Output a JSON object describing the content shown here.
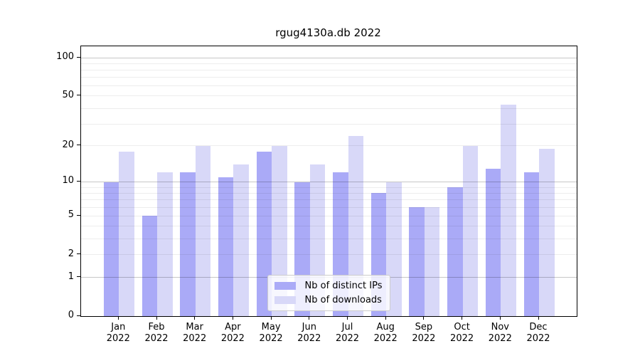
{
  "chart_data": {
    "type": "bar",
    "title": "rgug4130a.db 2022",
    "x": {
      "categories": [
        "Jan",
        "Feb",
        "Mar",
        "Apr",
        "May",
        "Jun",
        "Jul",
        "Aug",
        "Sep",
        "Oct",
        "Nov",
        "Dec"
      ],
      "year_label": "2022"
    },
    "y": {
      "scale": "log1p",
      "axis_max": 123,
      "tick_values": [
        100,
        50,
        20,
        10,
        5,
        2,
        1,
        0
      ],
      "major_grid_values": [
        1,
        10,
        100
      ],
      "minor_grid_values": [
        2,
        3,
        4,
        5,
        6,
        7,
        8,
        9,
        20,
        30,
        40,
        50,
        60,
        70,
        80,
        90
      ]
    },
    "series": [
      {
        "name": "Nb of distinct IPs",
        "color": "#aaaaf7",
        "values": [
          10,
          5,
          12,
          11,
          18,
          10,
          12,
          8,
          6,
          9,
          13,
          12
        ]
      },
      {
        "name": "Nb of downloads",
        "color": "#d8d8f8",
        "values": [
          18,
          12,
          20,
          14,
          20,
          14,
          24,
          10,
          6,
          20,
          43,
          19
        ]
      }
    ],
    "legend": {
      "position": "lower center"
    },
    "colors": {
      "background": "#ffffff",
      "axis": "#000000",
      "grid_major": "rgba(0,0,0,0.22)",
      "grid_minor": "rgba(0,0,0,0.07)"
    }
  }
}
